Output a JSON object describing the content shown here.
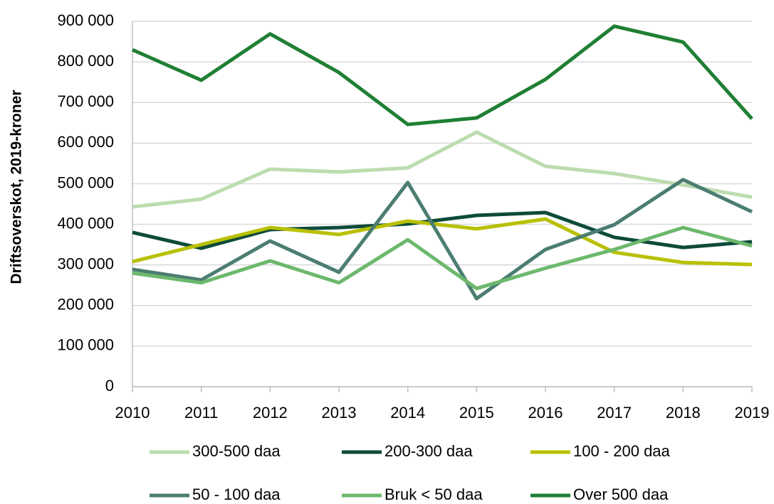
{
  "chart_data": {
    "type": "line",
    "y_label": "Driftsoverskot, 2019-kroner",
    "categories": [
      "2010",
      "2011",
      "2012",
      "2013",
      "2014",
      "2015",
      "2016",
      "2017",
      "2018",
      "2019"
    ],
    "series": [
      {
        "name": "300-500 daa",
        "color": "#bcdcae",
        "values": [
          443000,
          462000,
          536000,
          529000,
          539000,
          627000,
          543000,
          525000,
          497000,
          467000
        ]
      },
      {
        "name": "200-300 daa",
        "color": "#0e4b3b",
        "values": [
          380000,
          341000,
          387000,
          392000,
          401000,
          422000,
          429000,
          368000,
          343000,
          357000
        ]
      },
      {
        "name": "100 - 200 daa",
        "color": "#b8c000",
        "values": [
          308000,
          350000,
          392000,
          375000,
          408000,
          389000,
          413000,
          331000,
          306000,
          301000
        ]
      },
      {
        "name": "50 - 100 daa",
        "color": "#4b7d72",
        "values": [
          289000,
          263000,
          359000,
          282000,
          503000,
          217000,
          338000,
          399000,
          510000,
          431000
        ]
      },
      {
        "name": "Bruk < 50 daa",
        "color": "#6cb86c",
        "values": [
          280000,
          256000,
          310000,
          256000,
          362000,
          242000,
          292000,
          338000,
          392000,
          347000
        ]
      },
      {
        "name": "Over 500 daa",
        "color": "#1f7f33",
        "values": [
          830000,
          755000,
          869000,
          774000,
          646000,
          662000,
          757000,
          888000,
          849000,
          660000
        ]
      }
    ],
    "ylim": [
      0,
      900000
    ],
    "yticks": [
      0,
      {
        "value": 100000,
        "label": "100 000"
      },
      {
        "value": 200000,
        "label": "200 000"
      },
      {
        "value": 300000,
        "label": "300 000"
      },
      {
        "value": 400000,
        "label": "400 000"
      },
      {
        "value": 500000,
        "label": "500 000"
      },
      {
        "value": 600000,
        "label": "600 000"
      },
      {
        "value": 700000,
        "label": "700 000"
      },
      {
        "value": 800000,
        "label": "800 000"
      },
      {
        "value": 900000,
        "label": "900 000"
      }
    ],
    "grid": true
  }
}
